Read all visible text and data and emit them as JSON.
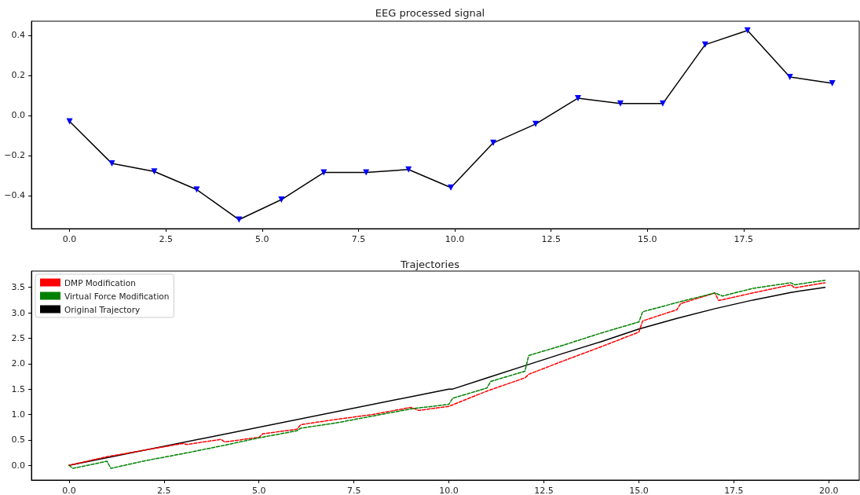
{
  "chart_data": [
    {
      "type": "line",
      "title": "EEG processed signal",
      "marker": "triangle",
      "grid": false,
      "x": [
        0,
        1.1,
        2.2,
        3.3,
        4.4,
        5.5,
        6.6,
        7.7,
        8.8,
        9.9,
        11,
        12.1,
        13.2,
        14.3,
        15.4,
        16.5,
        17.6,
        18.7,
        19.8
      ],
      "series": [
        {
          "color": "#000000",
          "colors": [
            "#0000ff",
            "#0000ff",
            "#0000ff",
            "#0000ff",
            "#0000ff",
            "#0000ff",
            "#0000ff",
            "#0000ff",
            "#0000ff",
            "#0000ff",
            "#0000ff",
            "#0000ff",
            "#0000ff",
            "#0000ff",
            "#0000ff",
            "#0000ff",
            "#0000ff",
            "#0000ff",
            "#0000ff"
          ],
          "values": [
            -0.03,
            -0.24,
            -0.28,
            -0.37,
            -0.52,
            -0.42,
            -0.285,
            -0.285,
            -0.27,
            -0.36,
            -0.137,
            -0.043,
            0.086,
            0.059,
            0.059,
            0.353,
            0.424,
            0.192,
            0.16
          ]
        }
      ],
      "xlim": [
        -0.99,
        20.5
      ],
      "xticks": [
        {
          "value": 0,
          "label": "0.0"
        },
        {
          "value": 2.5,
          "label": "2.5"
        },
        {
          "value": 5,
          "label": "5.0"
        },
        {
          "value": 7.5,
          "label": "7.5"
        },
        {
          "value": 10,
          "label": "10.0"
        },
        {
          "value": 12.5,
          "label": "12.5"
        },
        {
          "value": 15,
          "label": "15.0"
        },
        {
          "value": 17.5,
          "label": "17.5"
        }
      ],
      "ylim": [
        -0.565,
        0.47
      ],
      "yticks": [
        {
          "value": -0.4,
          "label": "−0.4"
        },
        {
          "value": -0.2,
          "label": "−0.2"
        },
        {
          "value": 0,
          "label": "0.0"
        },
        {
          "value": 0.2,
          "label": "0.2"
        },
        {
          "value": 0.4,
          "label": "0.4"
        }
      ]
    },
    {
      "type": "line",
      "title": "Trajectories",
      "marker": "none",
      "grid": false,
      "legend": "top left",
      "series": [
        {
          "name": "DMP Modification",
          "color": "#ff0000",
          "line_style": "dashed",
          "x": [
            0,
            1,
            2,
            3,
            3.1,
            4,
            4.1,
            5,
            5.1,
            6,
            6.1,
            7,
            8,
            9,
            9.2,
            10,
            11,
            12,
            12.1,
            13,
            14,
            15,
            15.1,
            16,
            16.1,
            17,
            17.1,
            18,
            19,
            19.1,
            19.9
          ],
          "values": [
            0,
            0.17,
            0.3,
            0.43,
            0.41,
            0.51,
            0.46,
            0.55,
            0.62,
            0.71,
            0.8,
            0.9,
            1.0,
            1.14,
            1.08,
            1.16,
            1.46,
            1.72,
            1.79,
            2.05,
            2.33,
            2.62,
            2.84,
            3.06,
            3.18,
            3.39,
            3.24,
            3.39,
            3.55,
            3.49,
            3.59
          ]
        },
        {
          "name": "Virtual Force Modification",
          "color": "#008000",
          "line_style": "dashed",
          "x": [
            0,
            0.1,
            1,
            1.1,
            2,
            3,
            4,
            5,
            6,
            6.1,
            7,
            8,
            9,
            10,
            10.1,
            11,
            11.1,
            12,
            12.1,
            13,
            14,
            15,
            15.1,
            16,
            17,
            17.2,
            18,
            19,
            19.1,
            19.9
          ],
          "values": [
            0,
            -0.06,
            0.08,
            -0.06,
            0.09,
            0.23,
            0.38,
            0.54,
            0.68,
            0.73,
            0.83,
            0.97,
            1.11,
            1.2,
            1.32,
            1.52,
            1.65,
            1.85,
            2.16,
            2.36,
            2.6,
            2.82,
            3.02,
            3.2,
            3.39,
            3.33,
            3.48,
            3.59,
            3.55,
            3.64
          ]
        },
        {
          "name": "Original Trajectory",
          "color": "#000000",
          "line_style": "solid",
          "x": [
            0,
            10,
            10.1,
            11,
            12,
            13,
            14,
            15,
            16,
            17,
            18,
            19,
            19.9
          ],
          "values": [
            0,
            1.5,
            1.5,
            1.72,
            1.96,
            2.2,
            2.43,
            2.68,
            2.89,
            3.08,
            3.25,
            3.4,
            3.5
          ]
        }
      ],
      "xlim": [
        -0.99,
        20.8
      ],
      "xticks": [
        {
          "value": 0,
          "label": "0.0"
        },
        {
          "value": 2.5,
          "label": "2.5"
        },
        {
          "value": 5,
          "label": "5.0"
        },
        {
          "value": 7.5,
          "label": "7.5"
        },
        {
          "value": 10,
          "label": "10.0"
        },
        {
          "value": 12.5,
          "label": "12.5"
        },
        {
          "value": 15,
          "label": "15.0"
        },
        {
          "value": 17.5,
          "label": "17.5"
        },
        {
          "value": 20,
          "label": "20.0"
        }
      ],
      "ylim": [
        -0.29,
        3.82
      ],
      "yticks": [
        {
          "value": 0,
          "label": "0.0"
        },
        {
          "value": 0.5,
          "label": "0.5"
        },
        {
          "value": 1,
          "label": "1.0"
        },
        {
          "value": 1.5,
          "label": "1.5"
        },
        {
          "value": 2,
          "label": "2.0"
        },
        {
          "value": 2.5,
          "label": "2.5"
        },
        {
          "value": 3,
          "label": "3.0"
        },
        {
          "value": 3.5,
          "label": "3.5"
        }
      ]
    }
  ]
}
